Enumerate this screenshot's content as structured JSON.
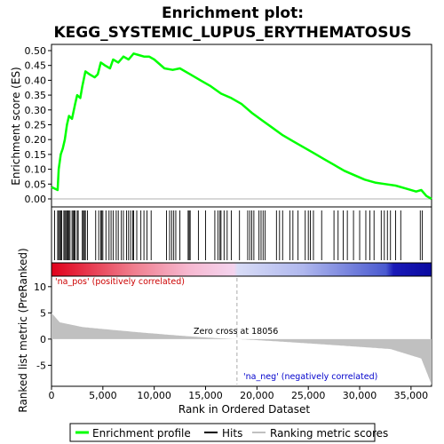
{
  "chart_data": {
    "type": "line",
    "title": "Enrichment plot:",
    "subtitle": "KEGG_SYSTEMIC_LUPUS_ERYTHEMATOSUS",
    "xlabel": "Rank in Ordered Dataset",
    "ylabel_top": "Enrichment score (ES)",
    "ylabel_bottom": "Ranked list metric (PreRanked)",
    "x_ticks": [
      0,
      5000,
      10000,
      15000,
      20000,
      25000,
      30000,
      35000
    ],
    "x_tick_labels": [
      "0",
      "5,000",
      "10,000",
      "15,000",
      "20,000",
      "25,000",
      "30,000",
      "35,000"
    ],
    "xlim": [
      0,
      37000
    ],
    "es_ylim": [
      0.0,
      0.5
    ],
    "es_ticks": [
      0.0,
      0.05,
      0.1,
      0.15,
      0.2,
      0.25,
      0.3,
      0.35,
      0.4,
      0.45,
      0.5
    ],
    "es_tick_labels": [
      "0.00",
      "0.05",
      "0.10",
      "0.15",
      "0.20",
      "0.25",
      "0.30",
      "0.35",
      "0.40",
      "0.45",
      "0.50"
    ],
    "metric_ylim": [
      -9,
      12
    ],
    "metric_ticks": [
      10,
      5,
      0,
      -5
    ],
    "metric_tick_labels": [
      "10",
      "5",
      "0",
      "-5"
    ],
    "series": [
      {
        "name": "Enrichment profile",
        "color": "#00ff00",
        "x": [
          0,
          600,
          700,
          900,
          1100,
          1300,
          1500,
          1700,
          2000,
          2300,
          2500,
          2800,
          3000,
          3300,
          3700,
          4200,
          4500,
          4800,
          5200,
          5700,
          6000,
          6500,
          7000,
          7500,
          8000,
          8500,
          9000,
          9500,
          10000,
          11000,
          11800,
          12500,
          13500,
          14500,
          15500,
          16500,
          17500,
          18500,
          19500,
          20500,
          21500,
          22500,
          23500,
          24500,
          25500,
          26500,
          27500,
          28500,
          29500,
          30500,
          31500,
          32500,
          33500,
          34500,
          35500,
          36000,
          36500,
          37000
        ],
        "y": [
          0.04,
          0.03,
          0.1,
          0.15,
          0.17,
          0.2,
          0.25,
          0.28,
          0.27,
          0.32,
          0.35,
          0.34,
          0.38,
          0.43,
          0.42,
          0.41,
          0.42,
          0.46,
          0.45,
          0.44,
          0.47,
          0.46,
          0.48,
          0.47,
          0.49,
          0.485,
          0.48,
          0.48,
          0.47,
          0.44,
          0.435,
          0.44,
          0.42,
          0.4,
          0.38,
          0.355,
          0.34,
          0.32,
          0.29,
          0.265,
          0.24,
          0.215,
          0.195,
          0.175,
          0.155,
          0.135,
          0.115,
          0.095,
          0.08,
          0.065,
          0.055,
          0.05,
          0.045,
          0.035,
          0.025,
          0.03,
          0.01,
          0.0
        ]
      }
    ],
    "hits": [
      300,
      600,
      700,
      800,
      900,
      1000,
      1200,
      1300,
      1400,
      1500,
      1600,
      1700,
      1800,
      2000,
      2100,
      2200,
      2300,
      2500,
      2600,
      3000,
      3100,
      3200,
      3300,
      3500,
      4300,
      4600,
      4800,
      4900,
      5000,
      5300,
      5600,
      5800,
      6000,
      6300,
      6500,
      6800,
      7000,
      7300,
      7500,
      7700,
      7900,
      8000,
      8300,
      8700,
      9000,
      9300,
      9700,
      11200,
      11500,
      11700,
      11900,
      12100,
      12500,
      13300,
      13400,
      13500,
      14300,
      15000,
      15900,
      16200,
      16400,
      16500,
      16800,
      17100,
      17500,
      18300,
      19100,
      19300,
      19500,
      19700,
      20200,
      20400,
      20600,
      20800,
      21900,
      22200,
      22500,
      23200,
      23500,
      24000,
      24700,
      25000,
      25200,
      25500,
      26300,
      27500,
      27900,
      28400,
      28800,
      29400,
      30000,
      30600,
      31000,
      31400,
      32100,
      32400,
      32700,
      33000,
      33500,
      34000,
      35900,
      36100
    ],
    "zero_cross": 18056,
    "zero_cross_label": "Zero cross at 18056",
    "pos_label": "'na_pos' (positively correlated)",
    "neg_label": "'na_neg' (negatively correlated)",
    "legend": [
      {
        "label": "Enrichment profile",
        "color": "#00ff00"
      },
      {
        "label": "Hits",
        "color": "#000000"
      },
      {
        "label": "Ranking metric scores",
        "color": "#c0c0c0"
      }
    ]
  }
}
